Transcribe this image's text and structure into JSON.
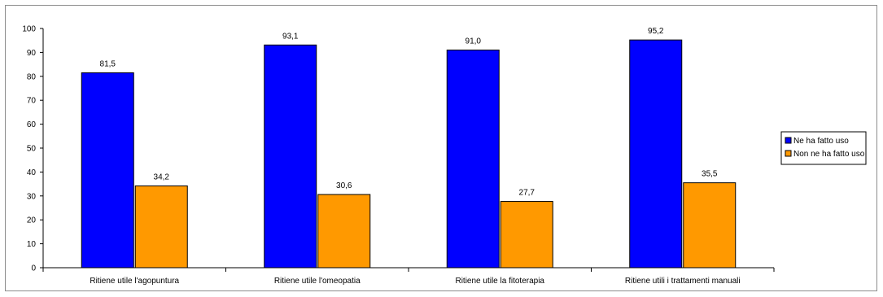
{
  "chart_data": {
    "type": "bar",
    "title": "",
    "xlabel": "",
    "ylabel": "",
    "categories": [
      "Ritiene utile l'agopuntura",
      "Ritiene utile l'omeopatia",
      "Ritiene utile la fitoterapia",
      "Ritiene utili i trattamenti manuali"
    ],
    "series": [
      {
        "name": "Ne ha fatto uso",
        "color": "#0000ff",
        "values": [
          81.5,
          93.1,
          91.0,
          95.2
        ],
        "labels": [
          "81,5",
          "93,1",
          "91,0",
          "95,2"
        ]
      },
      {
        "name": "Non ne ha fatto uso",
        "color": "#ff9900",
        "values": [
          34.2,
          30.6,
          27.7,
          35.5
        ],
        "labels": [
          "34,2",
          "30,6",
          "27,7",
          "35,5"
        ]
      }
    ],
    "ylim": [
      0,
      100
    ],
    "yticks": [
      0,
      10,
      20,
      30,
      40,
      50,
      60,
      70,
      80,
      90,
      100
    ],
    "grid": false,
    "legend_position": "right"
  }
}
